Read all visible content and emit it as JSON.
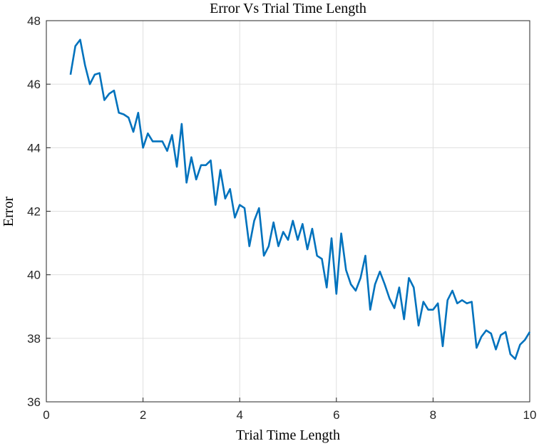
{
  "chart_data": {
    "type": "line",
    "title": "Error Vs Trial Time Length",
    "xlabel": "Trial Time Length",
    "ylabel": "Error",
    "x": [
      0.5,
      0.6,
      0.7,
      0.8,
      0.9,
      1.0,
      1.1,
      1.2,
      1.3,
      1.4,
      1.5,
      1.6,
      1.7,
      1.8,
      1.9,
      2.0,
      2.1,
      2.2,
      2.3,
      2.4,
      2.5,
      2.6,
      2.7,
      2.8,
      2.9,
      3.0,
      3.1,
      3.2,
      3.3,
      3.4,
      3.5,
      3.6,
      3.7,
      3.8,
      3.9,
      4.0,
      4.1,
      4.2,
      4.3,
      4.4,
      4.5,
      4.6,
      4.7,
      4.8,
      4.9,
      5.0,
      5.1,
      5.2,
      5.3,
      5.4,
      5.5,
      5.6,
      5.7,
      5.8,
      5.9,
      6.0,
      6.1,
      6.2,
      6.3,
      6.4,
      6.5,
      6.6,
      6.7,
      6.8,
      6.9,
      7.0,
      7.1,
      7.2,
      7.3,
      7.4,
      7.5,
      7.6,
      7.7,
      7.8,
      7.9,
      8.0,
      8.1,
      8.2,
      8.3,
      8.4,
      8.5,
      8.6,
      8.7,
      8.8,
      8.9,
      9.0,
      9.1,
      9.2,
      9.3,
      9.4,
      9.5,
      9.6,
      9.7,
      9.8,
      9.9,
      10.0
    ],
    "series": [
      {
        "name": "Error",
        "color": "#0072bd",
        "values": [
          46.3,
          47.2,
          47.4,
          46.6,
          46.0,
          46.3,
          46.35,
          45.5,
          45.7,
          45.8,
          45.1,
          45.05,
          44.95,
          44.5,
          45.1,
          44.0,
          44.45,
          44.2,
          44.2,
          44.2,
          43.9,
          44.4,
          43.4,
          44.75,
          42.9,
          43.7,
          43.0,
          43.45,
          43.45,
          43.6,
          42.2,
          43.3,
          42.4,
          42.7,
          41.8,
          42.2,
          42.1,
          40.9,
          41.7,
          42.1,
          40.6,
          40.9,
          41.65,
          40.9,
          41.35,
          41.1,
          41.7,
          41.1,
          41.6,
          40.8,
          41.45,
          40.6,
          40.5,
          39.6,
          41.15,
          39.4,
          41.3,
          40.15,
          39.7,
          39.5,
          39.9,
          40.6,
          38.9,
          39.7,
          40.1,
          39.7,
          39.25,
          38.95,
          39.6,
          38.6,
          39.9,
          39.6,
          38.4,
          39.15,
          38.9,
          38.9,
          39.1,
          37.75,
          39.2,
          39.5,
          39.1,
          39.2,
          39.1,
          39.15,
          37.7,
          38.05,
          38.25,
          38.15,
          37.65,
          38.1,
          38.2,
          37.5,
          37.35,
          37.8,
          37.95,
          38.2
        ]
      }
    ],
    "xlim": [
      0,
      10
    ],
    "xticks": [
      0,
      2,
      4,
      6,
      8,
      10
    ],
    "ylim": [
      36,
      48
    ],
    "yticks": [
      36,
      38,
      40,
      42,
      44,
      46,
      48
    ],
    "grid": true
  }
}
